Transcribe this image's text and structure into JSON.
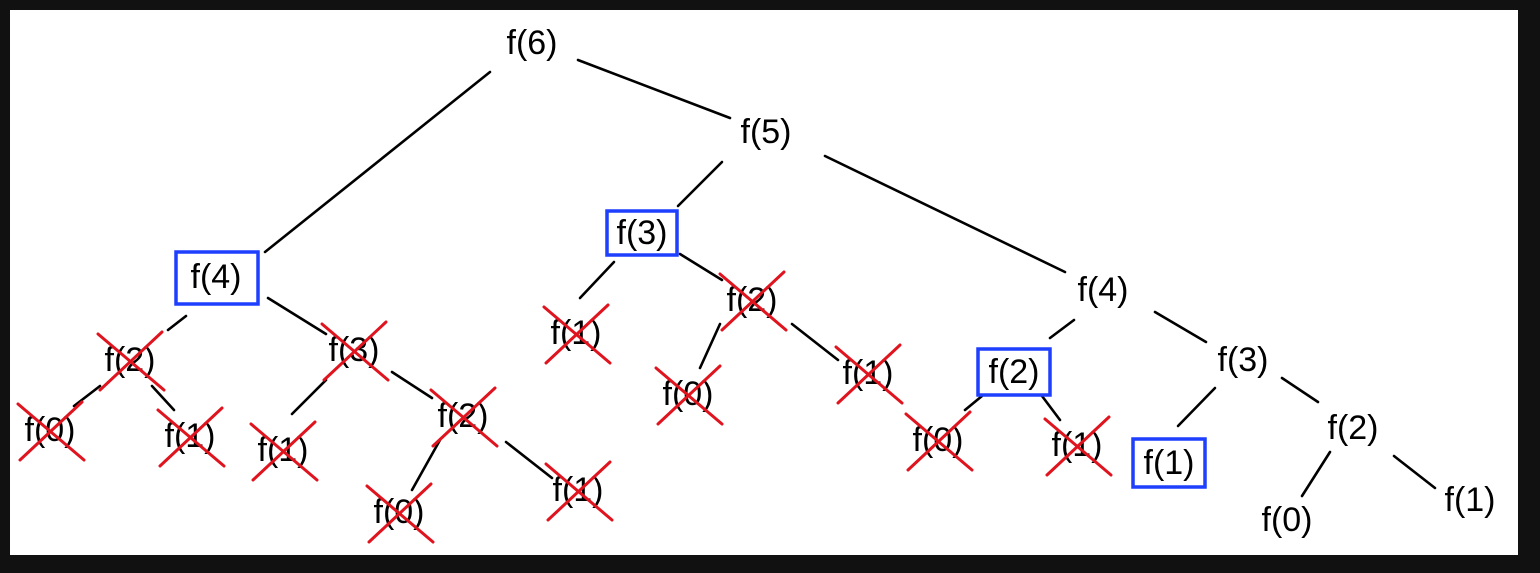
{
  "colors": {
    "frame": "#111111",
    "canvas": "#ffffff",
    "edge": "#000000",
    "highlight_box": "#1f3fff",
    "cross": "#e0141e"
  },
  "nodes": [
    {
      "id": "n_f6",
      "label": "f(6)"
    },
    {
      "id": "n_f5",
      "label": "f(5)"
    },
    {
      "id": "n_f4_l",
      "label": "f(4)",
      "highlighted": true
    },
    {
      "id": "n_f3_m",
      "label": "f(3)",
      "highlighted": true
    },
    {
      "id": "n_f4_r",
      "label": "f(4)"
    },
    {
      "id": "n_f2_a",
      "label": "f(2)",
      "crossed": true
    },
    {
      "id": "n_f3_b",
      "label": "f(3)",
      "crossed": true
    },
    {
      "id": "n_f0_a",
      "label": "f(0)",
      "crossed": true
    },
    {
      "id": "n_f1_a",
      "label": "f(1)",
      "crossed": true
    },
    {
      "id": "n_f1_b",
      "label": "f(1)",
      "crossed": true
    },
    {
      "id": "n_f2_b",
      "label": "f(2)",
      "crossed": true
    },
    {
      "id": "n_f0_b",
      "label": "f(0)",
      "crossed": true
    },
    {
      "id": "n_f1_c",
      "label": "f(1)",
      "crossed": true
    },
    {
      "id": "n_f1_d",
      "label": "f(1)",
      "crossed": true
    },
    {
      "id": "n_f2_c",
      "label": "f(2)",
      "crossed": true
    },
    {
      "id": "n_f0_c",
      "label": "f(0)",
      "crossed": true
    },
    {
      "id": "n_f1_e",
      "label": "f(1)",
      "crossed": true
    },
    {
      "id": "n_f2_d",
      "label": "f(2)",
      "highlighted": true
    },
    {
      "id": "n_f3_r",
      "label": "f(3)"
    },
    {
      "id": "n_f0_d",
      "label": "f(0)",
      "crossed": true
    },
    {
      "id": "n_f1_f",
      "label": "f(1)",
      "crossed": true
    },
    {
      "id": "n_f1_g",
      "label": "f(1)",
      "highlighted": true
    },
    {
      "id": "n_f2_r",
      "label": "f(2)"
    },
    {
      "id": "n_f0_r",
      "label": "f(0)"
    },
    {
      "id": "n_f1_r",
      "label": "f(1)"
    }
  ],
  "edges": [
    [
      "n_f6",
      "n_f4_l"
    ],
    [
      "n_f6",
      "n_f5"
    ],
    [
      "n_f5",
      "n_f3_m"
    ],
    [
      "n_f5",
      "n_f4_r"
    ],
    [
      "n_f4_l",
      "n_f2_a"
    ],
    [
      "n_f4_l",
      "n_f3_b"
    ],
    [
      "n_f2_a",
      "n_f0_a"
    ],
    [
      "n_f2_a",
      "n_f1_a"
    ],
    [
      "n_f3_b",
      "n_f1_b"
    ],
    [
      "n_f3_b",
      "n_f2_b"
    ],
    [
      "n_f2_b",
      "n_f0_b"
    ],
    [
      "n_f2_b",
      "n_f1_c"
    ],
    [
      "n_f3_m",
      "n_f1_d"
    ],
    [
      "n_f3_m",
      "n_f2_c"
    ],
    [
      "n_f2_c",
      "n_f0_c"
    ],
    [
      "n_f2_c",
      "n_f1_e"
    ],
    [
      "n_f4_r",
      "n_f2_d"
    ],
    [
      "n_f4_r",
      "n_f3_r"
    ],
    [
      "n_f2_d",
      "n_f0_d"
    ],
    [
      "n_f2_d",
      "n_f1_f"
    ],
    [
      "n_f3_r",
      "n_f1_g"
    ],
    [
      "n_f3_r",
      "n_f2_r"
    ],
    [
      "n_f2_r",
      "n_f0_r"
    ],
    [
      "n_f2_r",
      "n_f1_r"
    ]
  ]
}
